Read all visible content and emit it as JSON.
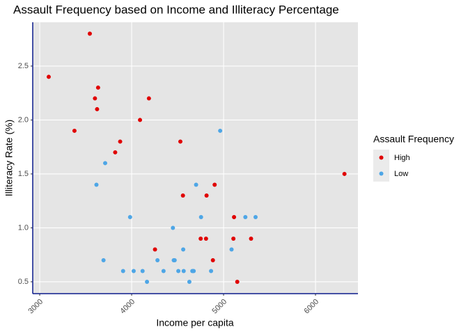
{
  "chart_data": {
    "type": "scatter",
    "title": "Assault Frequency based on Income and Illiteracy Percentage",
    "x_label": "Income per capita",
    "y_label": "Illiteracy Rate (%)",
    "legend_title": "Assault Frequency",
    "legend_position": "right",
    "grid": true,
    "axis_color": "#0b1a8c",
    "xlim": [
      2924,
      6462
    ],
    "ylim": [
      0.39,
      2.906
    ],
    "xticks": [
      3000,
      4000,
      5000,
      6000
    ],
    "yticks": [
      0.5,
      {
        "value": 1,
        "label": "1.0"
      },
      1.5,
      {
        "value": 2,
        "label": "2.0"
      },
      2.5
    ],
    "series": [
      {
        "name": "High",
        "color": "#e00000",
        "x": [
          3624,
          6315,
          4530,
          3378,
          5114,
          4884,
          4809,
          4815,
          4091,
          5107,
          3545,
          5299,
          4751,
          3098,
          4254,
          5149,
          3601,
          4903,
          3875,
          4558,
          3635,
          3821,
          4188
        ],
        "values": [
          2.1,
          1.5,
          1.8,
          1.9,
          1.1,
          0.7,
          0.9,
          1.3,
          2.0,
          0.9,
          2.8,
          0.9,
          0.9,
          2.4,
          0.8,
          0.5,
          2.2,
          1.4,
          1.8,
          1.3,
          2.3,
          1.7,
          2.2
        ]
      },
      {
        "name": "Low",
        "color": "#4ea6e6",
        "x": [
          5348,
          4963,
          4119,
          4458,
          4628,
          4669,
          3712,
          3694,
          4755,
          4675,
          4347,
          4508,
          4281,
          5237,
          5087,
          4561,
          3983,
          4660,
          4449,
          4167,
          4022,
          3907,
          4701,
          4864,
          3617,
          4468,
          4566
        ],
        "values": [
          1.1,
          1.9,
          0.6,
          0.7,
          0.5,
          0.6,
          1.6,
          0.7,
          1.1,
          0.6,
          0.6,
          0.6,
          0.7,
          1.1,
          0.8,
          0.8,
          1.1,
          0.6,
          1.0,
          0.5,
          0.6,
          0.6,
          1.4,
          0.6,
          1.4,
          0.7,
          0.6
        ]
      }
    ]
  }
}
